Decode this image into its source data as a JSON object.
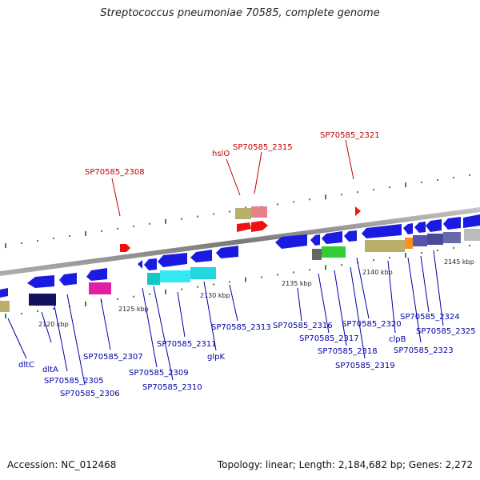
{
  "title": "Streptococcus pneumoniae 70585, complete genome",
  "footer": {
    "accession": "Accession: NC_012468",
    "stats": "Topology: linear; Length: 2,184,682 bp; Genes: 2,272"
  },
  "colors": {
    "axis": "#8c8c8c",
    "tick": "#2e8b2e",
    "gene_arrow": "#1a1ae0",
    "feature_label": "#c00000",
    "gene_label": "#0000a8"
  },
  "scale_labels": [
    "2120 kbp",
    "2125 kbp",
    "2130 kbp",
    "2135 kbp",
    "2140 kbp",
    "2145 kbp"
  ],
  "feature_labels": [
    "SP70585_2308",
    "hslO",
    "SP70585_2315",
    "SP70585_2321"
  ],
  "gene_labels": [
    "dltC",
    "dltA",
    "SP70585_2305",
    "SP70585_2306",
    "SP70585_2307",
    "SP70585_2309",
    "SP70585_2310",
    "SP70585_2311",
    "glpK",
    "SP70585_2313",
    "SP70585_2316",
    "SP70585_2317",
    "SP70585_2318",
    "SP70585_2319",
    "SP70585_2320",
    "clpB",
    "SP70585_2323",
    "SP70585_2324",
    "SP70585_2325"
  ]
}
